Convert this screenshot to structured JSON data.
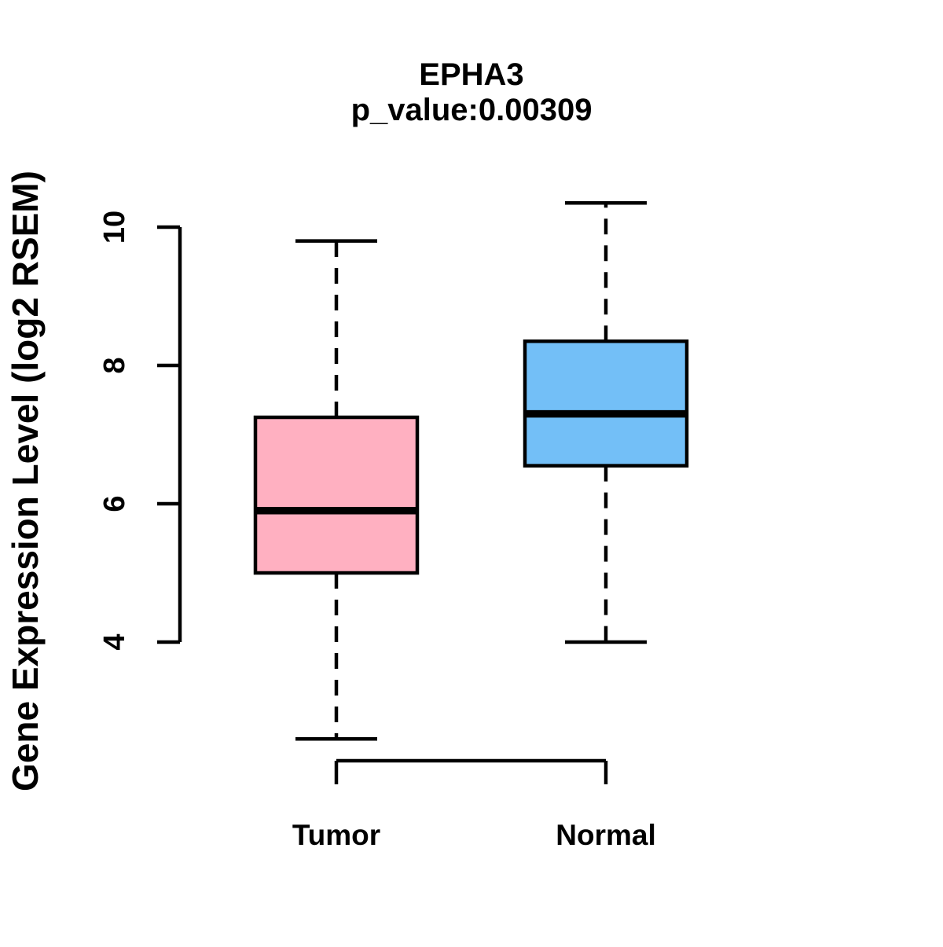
{
  "figure": {
    "background_color": "#FFFFFF",
    "foreground_color": "#000000"
  },
  "chart_data": {
    "type": "boxplot",
    "title": "EPHA3",
    "subtitle": "p_value:0.00309",
    "ylabel": "Gene Expression Level (log2 RSEM)",
    "xlabel": "",
    "categories": [
      "Tumor",
      "Normal"
    ],
    "yticks": [
      4,
      6,
      8,
      10
    ],
    "ylim": [
      4,
      10
    ],
    "grid": false,
    "legend": "none",
    "whisker_style": "dashed",
    "stroke_color": "#000000",
    "series": [
      {
        "name": "Tumor",
        "color": "#FFB0C1",
        "lower_whisker": 2.6,
        "q1": 5.0,
        "median": 5.9,
        "q3": 7.25,
        "upper_whisker": 9.8
      },
      {
        "name": "Normal",
        "color": "#73BFF7",
        "lower_whisker": 4.0,
        "q1": 6.55,
        "median": 7.3,
        "q3": 8.35,
        "upper_whisker": 10.35
      }
    ]
  }
}
